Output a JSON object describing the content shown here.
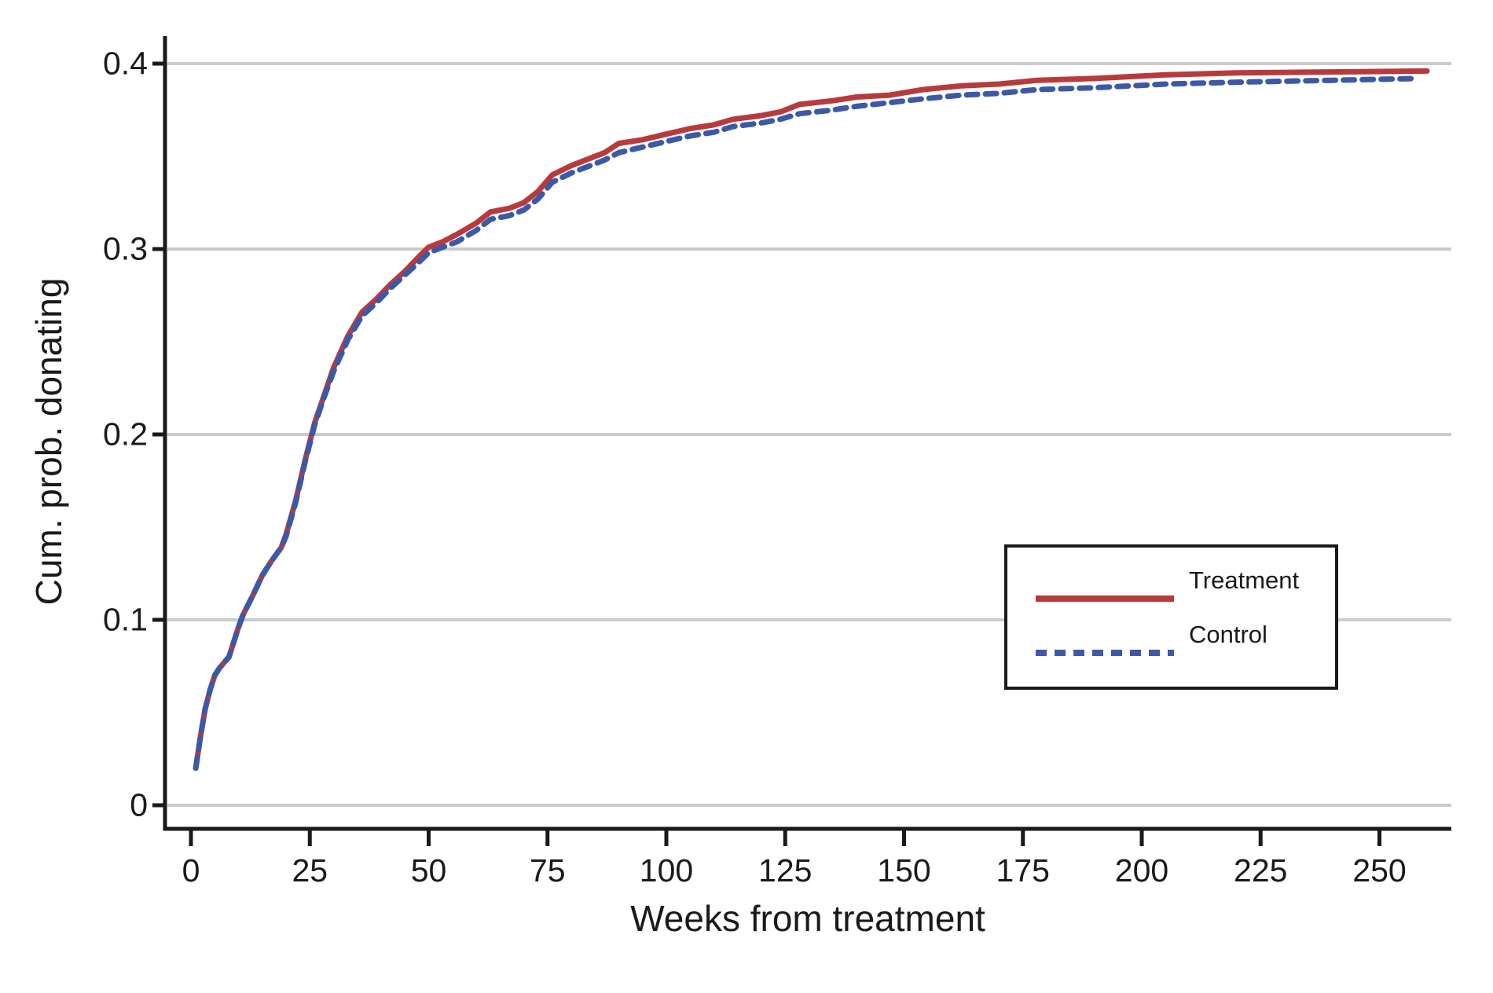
{
  "chart_data": {
    "type": "line",
    "title": "",
    "xlabel": "Weeks from treatment",
    "ylabel": "Cum. prob. donating",
    "x_ticks": [
      0,
      25,
      50,
      75,
      100,
      125,
      150,
      175,
      200,
      225,
      250
    ],
    "x_tick_labels": [
      "0",
      "25",
      "50",
      "75",
      "100",
      "125",
      "150",
      "175",
      "200",
      "225",
      "250"
    ],
    "y_ticks": [
      0,
      0.1,
      0.2,
      0.3,
      0.4
    ],
    "y_tick_labels": [
      "0",
      "0.1",
      "0.2",
      "0.3",
      "0.4"
    ],
    "xlim": [
      -5.5,
      265
    ],
    "ylim": [
      -0.013,
      0.414
    ],
    "grid": "horizontal",
    "legend_position": "inside-right",
    "series": [
      {
        "name": "Treatment",
        "style": "solid",
        "color": "#b93a3c",
        "points": [
          [
            1,
            0.02
          ],
          [
            2,
            0.037
          ],
          [
            3,
            0.052
          ],
          [
            4,
            0.062
          ],
          [
            5,
            0.07
          ],
          [
            6,
            0.074
          ],
          [
            8,
            0.08
          ],
          [
            10,
            0.096
          ],
          [
            11,
            0.103
          ],
          [
            13,
            0.113
          ],
          [
            15,
            0.124
          ],
          [
            17,
            0.132
          ],
          [
            19,
            0.139
          ],
          [
            20,
            0.146
          ],
          [
            22,
            0.164
          ],
          [
            24,
            0.186
          ],
          [
            26,
            0.206
          ],
          [
            28,
            0.221
          ],
          [
            30,
            0.236
          ],
          [
            33,
            0.253
          ],
          [
            36,
            0.266
          ],
          [
            39,
            0.273
          ],
          [
            42,
            0.281
          ],
          [
            45,
            0.288
          ],
          [
            48,
            0.296
          ],
          [
            50,
            0.301
          ],
          [
            53,
            0.304
          ],
          [
            56,
            0.308
          ],
          [
            60,
            0.314
          ],
          [
            63,
            0.32
          ],
          [
            67,
            0.322
          ],
          [
            70,
            0.325
          ],
          [
            73,
            0.331
          ],
          [
            76,
            0.34
          ],
          [
            80,
            0.345
          ],
          [
            84,
            0.349
          ],
          [
            87,
            0.352
          ],
          [
            90,
            0.357
          ],
          [
            95,
            0.359
          ],
          [
            100,
            0.362
          ],
          [
            105,
            0.365
          ],
          [
            110,
            0.367
          ],
          [
            114,
            0.37
          ],
          [
            120,
            0.372
          ],
          [
            124,
            0.374
          ],
          [
            128,
            0.378
          ],
          [
            135,
            0.38
          ],
          [
            140,
            0.382
          ],
          [
            147,
            0.383
          ],
          [
            154,
            0.386
          ],
          [
            162,
            0.388
          ],
          [
            170,
            0.389
          ],
          [
            178,
            0.391
          ],
          [
            190,
            0.392
          ],
          [
            205,
            0.394
          ],
          [
            220,
            0.395
          ],
          [
            240,
            0.3955
          ],
          [
            260,
            0.396
          ]
        ]
      },
      {
        "name": "Control",
        "style": "dashed",
        "color": "#3b59a6",
        "points": [
          [
            1,
            0.02
          ],
          [
            2,
            0.037
          ],
          [
            3,
            0.052
          ],
          [
            4,
            0.062
          ],
          [
            5,
            0.07
          ],
          [
            6,
            0.074
          ],
          [
            8,
            0.08
          ],
          [
            10,
            0.096
          ],
          [
            11,
            0.103
          ],
          [
            13,
            0.113
          ],
          [
            15,
            0.124
          ],
          [
            17,
            0.132
          ],
          [
            19,
            0.139
          ],
          [
            20,
            0.145
          ],
          [
            22,
            0.163
          ],
          [
            24,
            0.185
          ],
          [
            26,
            0.205
          ],
          [
            28,
            0.22
          ],
          [
            30,
            0.234
          ],
          [
            33,
            0.251
          ],
          [
            36,
            0.264
          ],
          [
            39,
            0.271
          ],
          [
            42,
            0.279
          ],
          [
            45,
            0.286
          ],
          [
            48,
            0.293
          ],
          [
            50,
            0.298
          ],
          [
            53,
            0.301
          ],
          [
            56,
            0.304
          ],
          [
            60,
            0.31
          ],
          [
            63,
            0.316
          ],
          [
            67,
            0.318
          ],
          [
            70,
            0.321
          ],
          [
            73,
            0.327
          ],
          [
            76,
            0.336
          ],
          [
            80,
            0.341
          ],
          [
            84,
            0.345
          ],
          [
            87,
            0.348
          ],
          [
            90,
            0.352
          ],
          [
            95,
            0.355
          ],
          [
            100,
            0.358
          ],
          [
            105,
            0.361
          ],
          [
            110,
            0.363
          ],
          [
            114,
            0.366
          ],
          [
            120,
            0.368
          ],
          [
            124,
            0.37
          ],
          [
            128,
            0.373
          ],
          [
            135,
            0.375
          ],
          [
            140,
            0.377
          ],
          [
            147,
            0.379
          ],
          [
            154,
            0.381
          ],
          [
            162,
            0.383
          ],
          [
            170,
            0.384
          ],
          [
            178,
            0.386
          ],
          [
            190,
            0.387
          ],
          [
            205,
            0.389
          ],
          [
            220,
            0.39
          ],
          [
            240,
            0.391
          ],
          [
            258,
            0.392
          ]
        ]
      }
    ]
  },
  "legend": {
    "items": [
      {
        "label": "Treatment",
        "color": "#b93a3c",
        "style": "solid"
      },
      {
        "label": "Control",
        "color": "#3b59a6",
        "style": "dashed"
      }
    ]
  },
  "colors": {
    "treatment": "#b93a3c",
    "control": "#3b59a6",
    "gridline": "#cbcbcb",
    "axis": "#1a1a1a",
    "background": "#ffffff"
  }
}
